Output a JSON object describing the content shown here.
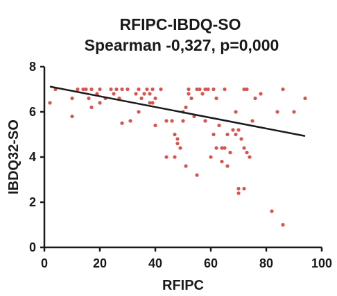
{
  "chart_data": {
    "type": "scatter",
    "title": "RFIPC-IBDQ-SO",
    "subtitle": "Spearman -0,327, p=0,000",
    "xlabel": "RFIPC",
    "ylabel": "IBDQ32-SO",
    "xlim": [
      0,
      100
    ],
    "ylim": [
      0,
      8
    ],
    "xticks": [
      0,
      20,
      40,
      60,
      80,
      100
    ],
    "yticks": [
      0,
      2,
      4,
      6,
      8
    ],
    "grid": false,
    "legend": "none",
    "colors": {
      "points": "#d9534f",
      "trend": "#1a1a1a",
      "axis": "#1a1a1a"
    },
    "trendline": {
      "x": [
        2,
        94
      ],
      "y": [
        7.12,
        4.93
      ]
    },
    "points": [
      {
        "x": 2,
        "y": 6.4
      },
      {
        "x": 4,
        "y": 7.0
      },
      {
        "x": 10,
        "y": 6.6
      },
      {
        "x": 10,
        "y": 5.8
      },
      {
        "x": 12,
        "y": 7.0
      },
      {
        "x": 14,
        "y": 7.0
      },
      {
        "x": 15,
        "y": 7.0
      },
      {
        "x": 16,
        "y": 6.6
      },
      {
        "x": 17,
        "y": 7.0
      },
      {
        "x": 17,
        "y": 6.2
      },
      {
        "x": 19,
        "y": 6.8
      },
      {
        "x": 20,
        "y": 7.0
      },
      {
        "x": 20,
        "y": 6.4
      },
      {
        "x": 22,
        "y": 6.6
      },
      {
        "x": 24,
        "y": 7.0
      },
      {
        "x": 25,
        "y": 6.8
      },
      {
        "x": 26,
        "y": 7.0
      },
      {
        "x": 27,
        "y": 6.6
      },
      {
        "x": 28,
        "y": 7.0
      },
      {
        "x": 28,
        "y": 5.5
      },
      {
        "x": 30,
        "y": 7.0
      },
      {
        "x": 31,
        "y": 5.6
      },
      {
        "x": 33,
        "y": 6.8
      },
      {
        "x": 34,
        "y": 7.0
      },
      {
        "x": 34,
        "y": 6.0
      },
      {
        "x": 35,
        "y": 6.6
      },
      {
        "x": 36,
        "y": 6.8
      },
      {
        "x": 37,
        "y": 7.0
      },
      {
        "x": 38,
        "y": 6.8
      },
      {
        "x": 38,
        "y": 6.4
      },
      {
        "x": 39,
        "y": 7.0
      },
      {
        "x": 39,
        "y": 6.4
      },
      {
        "x": 40,
        "y": 6.6
      },
      {
        "x": 40,
        "y": 5.4
      },
      {
        "x": 42,
        "y": 7.0
      },
      {
        "x": 44,
        "y": 5.6
      },
      {
        "x": 44,
        "y": 4.0
      },
      {
        "x": 46,
        "y": 5.6
      },
      {
        "x": 47,
        "y": 5.0
      },
      {
        "x": 47,
        "y": 4.0
      },
      {
        "x": 48,
        "y": 4.8
      },
      {
        "x": 48,
        "y": 4.6
      },
      {
        "x": 49,
        "y": 4.4
      },
      {
        "x": 50,
        "y": 6.0
      },
      {
        "x": 50,
        "y": 5.6
      },
      {
        "x": 51,
        "y": 6.2
      },
      {
        "x": 51,
        "y": 3.6
      },
      {
        "x": 52,
        "y": 7.0
      },
      {
        "x": 52,
        "y": 6.8
      },
      {
        "x": 53,
        "y": 6.6
      },
      {
        "x": 54,
        "y": 5.8
      },
      {
        "x": 55,
        "y": 7.0
      },
      {
        "x": 55,
        "y": 3.2
      },
      {
        "x": 56,
        "y": 7.0
      },
      {
        "x": 57,
        "y": 6.8
      },
      {
        "x": 58,
        "y": 7.0
      },
      {
        "x": 58,
        "y": 5.6
      },
      {
        "x": 59,
        "y": 7.0
      },
      {
        "x": 60,
        "y": 4.0
      },
      {
        "x": 61,
        "y": 7.0
      },
      {
        "x": 61,
        "y": 5.0
      },
      {
        "x": 62,
        "y": 6.6
      },
      {
        "x": 62,
        "y": 4.4
      },
      {
        "x": 63,
        "y": 5.4
      },
      {
        "x": 64,
        "y": 4.4
      },
      {
        "x": 64,
        "y": 3.8
      },
      {
        "x": 65,
        "y": 7.0
      },
      {
        "x": 65,
        "y": 4.4
      },
      {
        "x": 66,
        "y": 5.0
      },
      {
        "x": 66,
        "y": 3.6
      },
      {
        "x": 67,
        "y": 4.2
      },
      {
        "x": 68,
        "y": 5.2
      },
      {
        "x": 69,
        "y": 5.0
      },
      {
        "x": 69,
        "y": 6.0
      },
      {
        "x": 70,
        "y": 5.2
      },
      {
        "x": 70,
        "y": 2.6
      },
      {
        "x": 70,
        "y": 2.4
      },
      {
        "x": 71,
        "y": 4.8
      },
      {
        "x": 72,
        "y": 7.0
      },
      {
        "x": 72,
        "y": 4.4
      },
      {
        "x": 72,
        "y": 2.6
      },
      {
        "x": 73,
        "y": 7.0
      },
      {
        "x": 73,
        "y": 4.2
      },
      {
        "x": 74,
        "y": 4.0
      },
      {
        "x": 75,
        "y": 5.6
      },
      {
        "x": 76,
        "y": 6.6
      },
      {
        "x": 78,
        "y": 6.8
      },
      {
        "x": 82,
        "y": 1.6
      },
      {
        "x": 84,
        "y": 6.0
      },
      {
        "x": 86,
        "y": 7.0
      },
      {
        "x": 86,
        "y": 1.0
      },
      {
        "x": 90,
        "y": 6.0
      },
      {
        "x": 94,
        "y": 6.6
      }
    ]
  }
}
